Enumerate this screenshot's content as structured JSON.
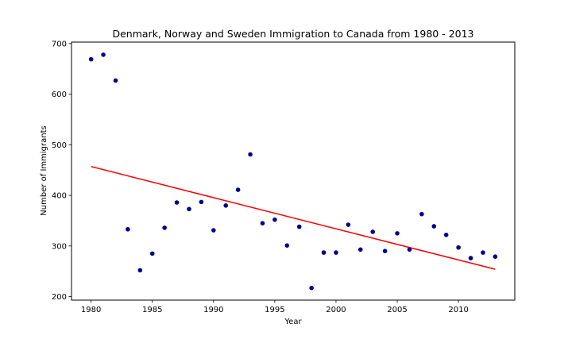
{
  "chart_data": {
    "type": "scatter",
    "title": "Denmark, Norway and Sweden Immigration to Canada from 1980 - 2013",
    "xlabel": "Year",
    "ylabel": "Number of Immigrants",
    "xlim": [
      1978.4,
      2014.6
    ],
    "ylim": [
      193,
      703
    ],
    "xticks": [
      1980,
      1985,
      1990,
      1995,
      2000,
      2005,
      2010
    ],
    "yticks": [
      200,
      300,
      400,
      500,
      600,
      700
    ],
    "grid": false,
    "legend": "none",
    "series": [
      {
        "x": [
          1980,
          1981,
          1982,
          1983,
          1984,
          1985,
          1986,
          1987,
          1988,
          1989,
          1990,
          1991,
          1992,
          1993,
          1994,
          1995,
          1996,
          1997,
          1998,
          1999,
          2000,
          2001,
          2002,
          2003,
          2004,
          2005,
          2006,
          2007,
          2008,
          2009,
          2010,
          2011,
          2012,
          2013
        ],
        "y": [
          669,
          678,
          627,
          333,
          252,
          285,
          336,
          386,
          373,
          387,
          331,
          380,
          411,
          481,
          345,
          352,
          301,
          338,
          217,
          287,
          287,
          342,
          293,
          328,
          290,
          325,
          293,
          363,
          339,
          322,
          297,
          276,
          287,
          279
        ],
        "color": "#00008b"
      }
    ],
    "trendline": {
      "x": [
        1980,
        2013
      ],
      "y": [
        457,
        254
      ],
      "color": "#ff0000"
    }
  }
}
